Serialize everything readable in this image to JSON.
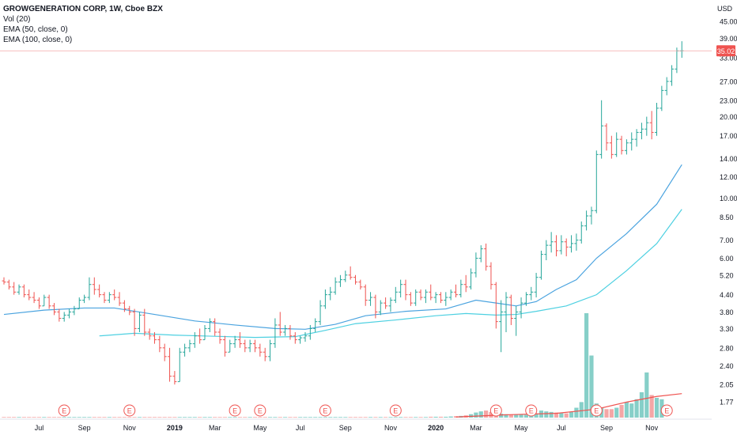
{
  "legend": {
    "title": "GROWGENERATION CORP, 1W, Cboe BZX",
    "vol": "Vol (20)",
    "ema50": "EMA (50, close, 0)",
    "ema100": "EMA (100, close, 0)"
  },
  "chart_data": {
    "type": "ohlc",
    "scale": "log",
    "currency": "USD",
    "price_ticks": [
      "45.00",
      "39.00",
      "33.00",
      "27.00",
      "23.00",
      "20.00",
      "17.00",
      "14.00",
      "12.00",
      "10.00",
      "8.50",
      "7.00",
      "6.00",
      "5.20",
      "4.40",
      "3.80",
      "3.30",
      "2.80",
      "2.40",
      "2.05",
      "1.77"
    ],
    "last_price_label": "35.02",
    "last_price": 35.02,
    "x_ticks": [
      "Jul",
      "Sep",
      "Nov",
      "2019",
      "Mar",
      "May",
      "Jul",
      "Sep",
      "Nov",
      "2020",
      "Mar",
      "May",
      "Jul",
      "Sep",
      "Nov"
    ],
    "x_tick_weeks": [
      7,
      16,
      25,
      34,
      42,
      51,
      59,
      68,
      77,
      86,
      94,
      103,
      111,
      120,
      129
    ],
    "earnings_weeks": [
      12,
      25,
      46,
      51,
      64,
      78,
      98,
      105,
      118,
      132
    ],
    "earnings_label": "E",
    "colors": {
      "up": "#26a69a",
      "down": "#ef5350",
      "vol_up": "#86cfc8",
      "vol_down": "#f4a6a6",
      "ema50": "#4aa3df",
      "ema100": "#4dd0e1",
      "vol_ma": "#ef5350"
    },
    "bars": [
      [
        4.95,
        5.1,
        4.8,
        4.9
      ],
      [
        4.9,
        5.0,
        4.6,
        4.7
      ],
      [
        4.7,
        4.9,
        4.4,
        4.5
      ],
      [
        4.5,
        4.8,
        4.4,
        4.7
      ],
      [
        4.7,
        4.8,
        4.3,
        4.4
      ],
      [
        4.4,
        4.6,
        4.2,
        4.3
      ],
      [
        4.3,
        4.5,
        4.1,
        4.2
      ],
      [
        4.2,
        4.3,
        3.9,
        4.0
      ],
      [
        4.0,
        4.4,
        4.0,
        4.3
      ],
      [
        4.3,
        4.4,
        3.9,
        4.0
      ],
      [
        4.0,
        4.1,
        3.7,
        3.8
      ],
      [
        3.8,
        3.9,
        3.5,
        3.6
      ],
      [
        3.6,
        3.8,
        3.5,
        3.7
      ],
      [
        3.7,
        3.9,
        3.6,
        3.8
      ],
      [
        3.8,
        4.0,
        3.7,
        3.9
      ],
      [
        3.9,
        4.3,
        3.9,
        4.2
      ],
      [
        4.2,
        4.4,
        4.1,
        4.3
      ],
      [
        4.3,
        5.1,
        4.2,
        4.8
      ],
      [
        4.8,
        5.1,
        4.4,
        4.6
      ],
      [
        4.6,
        4.8,
        4.3,
        4.4
      ],
      [
        4.4,
        4.5,
        4.1,
        4.2
      ],
      [
        4.2,
        4.5,
        4.1,
        4.4
      ],
      [
        4.4,
        4.6,
        4.2,
        4.3
      ],
      [
        4.3,
        4.5,
        4.0,
        4.1
      ],
      [
        4.1,
        4.2,
        3.8,
        3.9
      ],
      [
        3.9,
        4.0,
        3.7,
        3.8
      ],
      [
        3.8,
        3.9,
        3.1,
        3.3
      ],
      [
        3.3,
        3.8,
        3.2,
        3.7
      ],
      [
        3.7,
        3.9,
        3.1,
        3.2
      ],
      [
        3.2,
        3.3,
        3.0,
        3.1
      ],
      [
        3.1,
        3.2,
        2.9,
        3.0
      ],
      [
        3.0,
        3.1,
        2.7,
        2.8
      ],
      [
        2.8,
        2.9,
        2.5,
        2.6
      ],
      [
        2.6,
        2.8,
        2.1,
        2.2
      ],
      [
        2.2,
        2.3,
        2.05,
        2.1
      ],
      [
        2.1,
        2.8,
        2.1,
        2.7
      ],
      [
        2.7,
        2.9,
        2.6,
        2.8
      ],
      [
        2.8,
        3.0,
        2.7,
        2.9
      ],
      [
        2.9,
        3.2,
        2.8,
        3.1
      ],
      [
        3.1,
        3.3,
        2.9,
        3.0
      ],
      [
        3.0,
        3.4,
        3.0,
        3.3
      ],
      [
        3.3,
        3.6,
        3.2,
        3.5
      ],
      [
        3.5,
        3.6,
        3.1,
        3.2
      ],
      [
        3.2,
        3.3,
        2.9,
        3.0
      ],
      [
        3.0,
        3.1,
        2.6,
        2.7
      ],
      [
        2.7,
        3.0,
        2.7,
        2.9
      ],
      [
        2.9,
        3.1,
        2.8,
        3.0
      ],
      [
        3.0,
        3.2,
        2.8,
        2.9
      ],
      [
        2.9,
        3.0,
        2.7,
        2.8
      ],
      [
        2.8,
        3.0,
        2.7,
        2.9
      ],
      [
        2.9,
        3.0,
        2.7,
        2.8
      ],
      [
        2.8,
        2.9,
        2.6,
        2.7
      ],
      [
        2.7,
        2.8,
        2.5,
        2.6
      ],
      [
        2.6,
        3.0,
        2.5,
        2.9
      ],
      [
        2.9,
        3.6,
        2.8,
        3.4
      ],
      [
        3.4,
        3.8,
        3.1,
        3.2
      ],
      [
        3.2,
        3.4,
        3.1,
        3.3
      ],
      [
        3.3,
        3.4,
        3.0,
        3.1
      ],
      [
        3.1,
        3.2,
        2.9,
        3.0
      ],
      [
        3.0,
        3.1,
        2.9,
        3.05
      ],
      [
        3.05,
        3.2,
        2.95,
        3.1
      ],
      [
        3.1,
        3.4,
        3.0,
        3.3
      ],
      [
        3.3,
        3.6,
        3.2,
        3.5
      ],
      [
        3.5,
        4.2,
        3.4,
        4.0
      ],
      [
        4.0,
        4.6,
        3.9,
        4.4
      ],
      [
        4.4,
        4.7,
        4.2,
        4.5
      ],
      [
        4.5,
        5.1,
        4.4,
        4.9
      ],
      [
        4.9,
        5.2,
        4.7,
        5.0
      ],
      [
        5.0,
        5.4,
        4.9,
        5.2
      ],
      [
        5.2,
        5.6,
        5.0,
        5.1
      ],
      [
        5.1,
        5.2,
        4.8,
        4.9
      ],
      [
        4.9,
        5.0,
        4.6,
        4.7
      ],
      [
        4.7,
        4.8,
        4.0,
        4.2
      ],
      [
        4.2,
        4.5,
        4.0,
        4.3
      ],
      [
        4.3,
        4.4,
        3.6,
        3.8
      ],
      [
        3.8,
        4.2,
        3.7,
        4.1
      ],
      [
        4.1,
        4.3,
        3.9,
        4.0
      ],
      [
        4.0,
        4.3,
        3.8,
        4.2
      ],
      [
        4.2,
        4.7,
        4.1,
        4.5
      ],
      [
        4.5,
        5.0,
        4.3,
        4.8
      ],
      [
        4.8,
        5.0,
        4.2,
        4.4
      ],
      [
        4.4,
        4.5,
        4.0,
        4.1
      ],
      [
        4.1,
        4.6,
        4.0,
        4.5
      ],
      [
        4.5,
        4.6,
        4.2,
        4.3
      ],
      [
        4.3,
        4.6,
        4.1,
        4.5
      ],
      [
        4.5,
        4.8,
        4.2,
        4.3
      ],
      [
        4.3,
        4.5,
        4.1,
        4.4
      ],
      [
        4.4,
        4.5,
        4.1,
        4.2
      ],
      [
        4.2,
        4.5,
        4.0,
        4.3
      ],
      [
        4.3,
        4.6,
        4.2,
        4.5
      ],
      [
        4.5,
        4.8,
        4.3,
        4.4
      ],
      [
        4.4,
        5.0,
        4.3,
        4.8
      ],
      [
        4.8,
        5.2,
        4.5,
        4.7
      ],
      [
        4.7,
        5.5,
        4.6,
        5.3
      ],
      [
        5.3,
        6.3,
        5.1,
        6.0
      ],
      [
        6.0,
        6.7,
        5.8,
        6.5
      ],
      [
        6.5,
        6.8,
        5.4,
        5.6
      ],
      [
        5.6,
        5.8,
        4.6,
        4.8
      ],
      [
        4.8,
        4.9,
        3.3,
        3.5
      ],
      [
        3.5,
        4.2,
        2.7,
        3.8
      ],
      [
        3.8,
        4.5,
        3.2,
        4.3
      ],
      [
        4.3,
        4.4,
        3.4,
        3.6
      ],
      [
        3.6,
        4.0,
        3.1,
        3.8
      ],
      [
        3.8,
        4.3,
        3.6,
        4.1
      ],
      [
        4.1,
        4.5,
        4.0,
        4.4
      ],
      [
        4.4,
        4.7,
        4.2,
        4.5
      ],
      [
        4.5,
        5.3,
        4.3,
        5.1
      ],
      [
        5.1,
        6.4,
        5.0,
        6.2
      ],
      [
        6.2,
        7.0,
        5.9,
        6.7
      ],
      [
        6.7,
        7.5,
        6.3,
        6.9
      ],
      [
        6.9,
        7.3,
        6.1,
        6.4
      ],
      [
        6.4,
        7.3,
        6.2,
        6.9
      ],
      [
        6.9,
        7.1,
        6.1,
        6.6
      ],
      [
        6.6,
        7.3,
        6.3,
        6.8
      ],
      [
        6.8,
        7.4,
        6.4,
        7.0
      ],
      [
        7.0,
        8.2,
        6.8,
        7.9
      ],
      [
        7.9,
        9.0,
        7.6,
        8.6
      ],
      [
        8.6,
        9.3,
        8.0,
        9.0
      ],
      [
        9.0,
        15.0,
        8.8,
        14.5
      ],
      [
        14.5,
        23.0,
        14.0,
        18.5
      ],
      [
        18.5,
        18.9,
        15.0,
        16.0
      ],
      [
        16.0,
        17.0,
        14.0,
        14.5
      ],
      [
        14.5,
        17.5,
        14.2,
        16.5
      ],
      [
        16.5,
        17.0,
        14.5,
        15.0
      ],
      [
        15.0,
        16.5,
        14.5,
        16.0
      ],
      [
        16.0,
        17.5,
        15.0,
        16.5
      ],
      [
        16.5,
        18.0,
        15.5,
        17.5
      ],
      [
        17.5,
        19.0,
        16.5,
        18.0
      ],
      [
        18.0,
        20.0,
        17.0,
        19.0
      ],
      [
        19.0,
        21.0,
        16.5,
        17.5
      ],
      [
        17.5,
        22.5,
        17.0,
        21.5
      ],
      [
        21.5,
        26.0,
        21.0,
        25.0
      ],
      [
        25.0,
        28.0,
        24.0,
        27.0
      ],
      [
        27.0,
        31.0,
        26.0,
        30.0
      ],
      [
        30.0,
        36.0,
        29.0,
        35.0
      ],
      [
        35.0,
        38.0,
        33.0,
        35.02
      ]
    ],
    "volume_max": 3.7,
    "volume": [
      0.02,
      0.02,
      0.02,
      0.02,
      0.02,
      0.02,
      0.02,
      0.02,
      0.02,
      0.02,
      0.02,
      0.02,
      0.02,
      0.02,
      0.02,
      0.02,
      0.02,
      0.02,
      0.02,
      0.02,
      0.02,
      0.02,
      0.02,
      0.02,
      0.02,
      0.02,
      0.02,
      0.02,
      0.02,
      0.02,
      0.02,
      0.02,
      0.02,
      0.02,
      0.02,
      0.02,
      0.02,
      0.02,
      0.02,
      0.02,
      0.02,
      0.02,
      0.02,
      0.02,
      0.02,
      0.02,
      0.02,
      0.02,
      0.02,
      0.02,
      0.02,
      0.02,
      0.02,
      0.02,
      0.02,
      0.02,
      0.02,
      0.02,
      0.02,
      0.02,
      0.02,
      0.02,
      0.02,
      0.02,
      0.02,
      0.02,
      0.02,
      0.02,
      0.02,
      0.02,
      0.02,
      0.02,
      0.02,
      0.02,
      0.02,
      0.02,
      0.02,
      0.02,
      0.02,
      0.02,
      0.02,
      0.02,
      0.02,
      0.02,
      0.02,
      0.03,
      0.03,
      0.03,
      0.03,
      0.04,
      0.05,
      0.06,
      0.08,
      0.12,
      0.18,
      0.22,
      0.25,
      0.2,
      0.16,
      0.14,
      0.12,
      0.1,
      0.11,
      0.12,
      0.1,
      0.12,
      0.15,
      0.25,
      0.22,
      0.2,
      0.18,
      0.16,
      0.15,
      0.2,
      0.35,
      0.55,
      3.7,
      2.2,
      0.5,
      0.35,
      0.3,
      0.3,
      0.35,
      0.45,
      0.55,
      0.5,
      0.65,
      0.9,
      1.6,
      0.8,
      0.7,
      0.65
    ],
    "ema50": [
      [
        0,
        3.72
      ],
      [
        8,
        3.86
      ],
      [
        16,
        3.93
      ],
      [
        22,
        3.93
      ],
      [
        30,
        3.72
      ],
      [
        38,
        3.52
      ],
      [
        46,
        3.4
      ],
      [
        54,
        3.3
      ],
      [
        60,
        3.28
      ],
      [
        66,
        3.42
      ],
      [
        72,
        3.68
      ],
      [
        80,
        3.82
      ],
      [
        88,
        3.9
      ],
      [
        94,
        4.2
      ],
      [
        98,
        4.1
      ],
      [
        102,
        4.0
      ],
      [
        106,
        4.15
      ],
      [
        110,
        4.6
      ],
      [
        114,
        5.0
      ],
      [
        118,
        6.0
      ],
      [
        124,
        7.4
      ],
      [
        130,
        9.5
      ],
      [
        135,
        13.3
      ]
    ],
    "ema100": [
      [
        19,
        3.1
      ],
      [
        26,
        3.17
      ],
      [
        34,
        3.12
      ],
      [
        42,
        3.09
      ],
      [
        50,
        3.06
      ],
      [
        58,
        3.08
      ],
      [
        64,
        3.25
      ],
      [
        70,
        3.44
      ],
      [
        78,
        3.55
      ],
      [
        86,
        3.68
      ],
      [
        92,
        3.75
      ],
      [
        98,
        3.7
      ],
      [
        102,
        3.72
      ],
      [
        106,
        3.82
      ],
      [
        112,
        4.0
      ],
      [
        118,
        4.4
      ],
      [
        124,
        5.4
      ],
      [
        130,
        6.8
      ],
      [
        135,
        9.1
      ]
    ],
    "vol_ma": [
      [
        90,
        0.02
      ],
      [
        100,
        0.1
      ],
      [
        110,
        0.15
      ],
      [
        118,
        0.3
      ],
      [
        124,
        0.55
      ],
      [
        130,
        0.75
      ],
      [
        135,
        0.85
      ]
    ]
  }
}
